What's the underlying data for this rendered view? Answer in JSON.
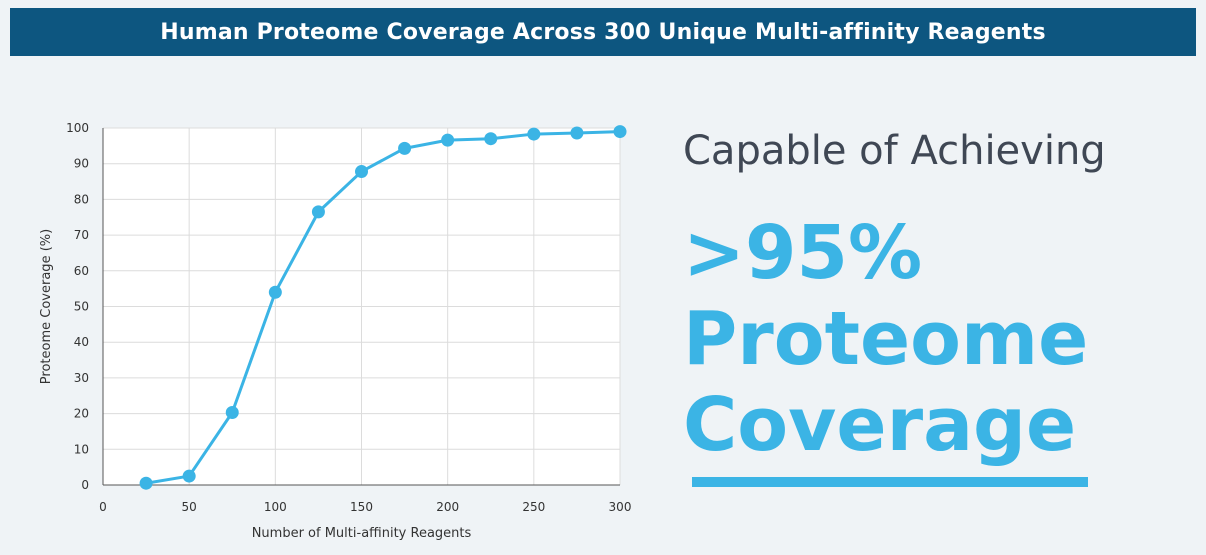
{
  "banner": {
    "title": "Human Proteome Coverage Across 300 Unique Multi-affinity Reagents"
  },
  "callout": {
    "lead": "Capable of Achieving",
    "line1": ">95%",
    "line2": "Proteome",
    "line3": "Coverage",
    "accent_color": "#3bb4e5"
  },
  "chart_data": {
    "type": "line",
    "title": "",
    "xlabel": "Number of Multi-affinity Reagents",
    "ylabel": "Proteome Coverage (%)",
    "xlim": [
      0,
      300
    ],
    "ylim": [
      0,
      100
    ],
    "xticks": [
      0,
      50,
      100,
      150,
      200,
      250,
      300
    ],
    "yticks": [
      0,
      10,
      20,
      30,
      40,
      50,
      60,
      70,
      80,
      90,
      100
    ],
    "grid": true,
    "series": [
      {
        "color": "#3bb4e5",
        "x": [
          25,
          50,
          75,
          100,
          125,
          150,
          175,
          200,
          225,
          250,
          275,
          300
        ],
        "y": [
          0.5,
          2.5,
          20.3,
          54,
          76.5,
          87.8,
          94.3,
          96.6,
          97,
          98.3,
          98.6,
          99
        ]
      }
    ]
  }
}
